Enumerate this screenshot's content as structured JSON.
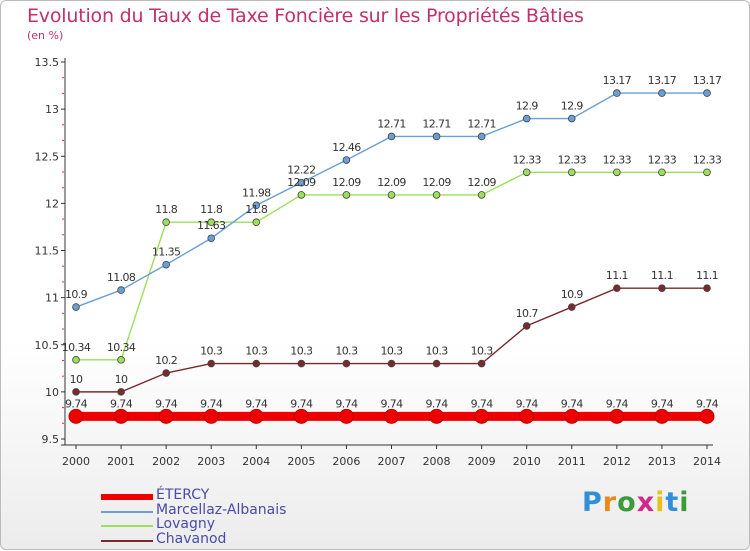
{
  "title": "Evolution du Taux de Taxe Foncière sur les Propriétés Bâties",
  "subtitle": "(en %)",
  "logo": "Proxiti",
  "colors": {
    "title": "#c2306a",
    "axis": "#333333",
    "legend_text": "#4a4aa8"
  },
  "chart_data": {
    "type": "line",
    "title": "Evolution du Taux de Taxe Foncière sur les Propriétés Bâties",
    "ylabel": "(en %)",
    "xlabel": "",
    "x": [
      "2000",
      "2001",
      "2002",
      "2003",
      "2004",
      "2005",
      "2006",
      "2007",
      "2008",
      "2009",
      "2010",
      "2011",
      "2012",
      "2013",
      "2014"
    ],
    "ylim": [
      9.5,
      13.5
    ],
    "yticks": [
      9.5,
      10,
      10.5,
      11,
      11.5,
      12,
      12.5,
      13,
      13.5
    ],
    "ytick_labels": [
      "9.5",
      "10",
      "10.5",
      "11",
      "11.5",
      "12",
      "12.5",
      "13",
      "13.5"
    ],
    "legend_position": "bottom-left",
    "series": [
      {
        "name": "ÉTERCY",
        "color": "#ee0000",
        "values": [
          9.74,
          9.74,
          9.74,
          9.74,
          9.74,
          9.74,
          9.74,
          9.74,
          9.74,
          9.74,
          9.74,
          9.74,
          9.74,
          9.74,
          9.74
        ],
        "labels": [
          "9.74",
          "9.74",
          "9.74",
          "9.74",
          "9.74",
          "9.74",
          "9.74",
          "9.74",
          "9.74",
          "9.74",
          "9.74",
          "9.74",
          "9.74",
          "9.74",
          "9.74"
        ]
      },
      {
        "name": "Marcellaz-Albanais",
        "color": "#6a9fd6",
        "values": [
          10.9,
          11.08,
          11.35,
          11.63,
          11.98,
          12.22,
          12.46,
          12.71,
          12.71,
          12.71,
          12.9,
          12.9,
          13.17,
          13.17,
          13.17
        ],
        "labels": [
          "10.9",
          "11.08",
          "11.35",
          "11.63",
          "11.98",
          "12.22",
          "12.46",
          "12.71",
          "12.71",
          "12.71",
          "12.9",
          "12.9",
          "13.17",
          "13.17",
          "13.17"
        ]
      },
      {
        "name": "Lovagny",
        "color": "#9be05a",
        "values": [
          10.34,
          10.34,
          11.8,
          11.8,
          11.8,
          12.09,
          12.09,
          12.09,
          12.09,
          12.09,
          12.33,
          12.33,
          12.33,
          12.33,
          12.33
        ],
        "labels": [
          "10.34",
          "10.34",
          "11.8",
          "11.8",
          "11.8",
          "12.09",
          "12.09",
          "12.09",
          "12.09",
          "12.09",
          "12.33",
          "12.33",
          "12.33",
          "12.33",
          "12.33"
        ]
      },
      {
        "name": "Chavanod",
        "color": "#7a2a2a",
        "values": [
          10,
          10,
          10.2,
          10.3,
          10.3,
          10.3,
          10.3,
          10.3,
          10.3,
          10.3,
          10.7,
          10.9,
          11.1,
          11.1,
          11.1
        ],
        "labels": [
          "10",
          "10",
          "10.2",
          "10.3",
          "10.3",
          "10.3",
          "10.3",
          "10.3",
          "10.3",
          "10.3",
          "10.7",
          "10.9",
          "11.1",
          "11.1",
          "11.1"
        ]
      }
    ]
  }
}
